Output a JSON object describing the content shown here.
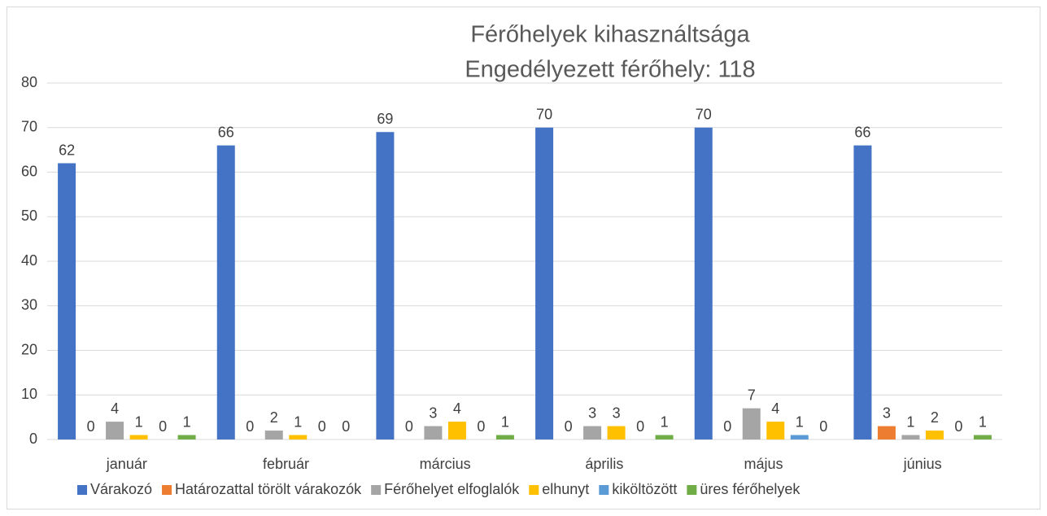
{
  "chart_data": {
    "type": "bar",
    "title": "Férőhelyek kihasználtsága",
    "subtitle": "Engedélyezett férőhely: 118",
    "categories": [
      "január",
      "február",
      "március",
      "április",
      "május",
      "június"
    ],
    "series": [
      {
        "name": "Várakozó",
        "color": "#4472c4",
        "values": [
          62,
          66,
          69,
          70,
          70,
          66
        ]
      },
      {
        "name": "Határozattal törölt várakozók",
        "color": "#ed7d31",
        "values": [
          0,
          0,
          0,
          0,
          0,
          3
        ]
      },
      {
        "name": "Férőhelyet elfoglalók",
        "color": "#a5a5a5",
        "values": [
          4,
          2,
          3,
          3,
          7,
          1
        ]
      },
      {
        "name": "elhunyt",
        "color": "#ffc000",
        "values": [
          1,
          1,
          4,
          3,
          4,
          2
        ]
      },
      {
        "name": "kiköltözött",
        "color": "#5b9bd5",
        "values": [
          0,
          0,
          0,
          0,
          1,
          0
        ]
      },
      {
        "name": "üres férőhelyek",
        "color": "#70ad47",
        "values": [
          1,
          0,
          1,
          1,
          0,
          1
        ]
      }
    ],
    "ylim": [
      0,
      80
    ],
    "yticks": [
      0,
      10,
      20,
      30,
      40,
      50,
      60,
      70,
      80
    ],
    "grid": true,
    "legend": "bottom"
  }
}
